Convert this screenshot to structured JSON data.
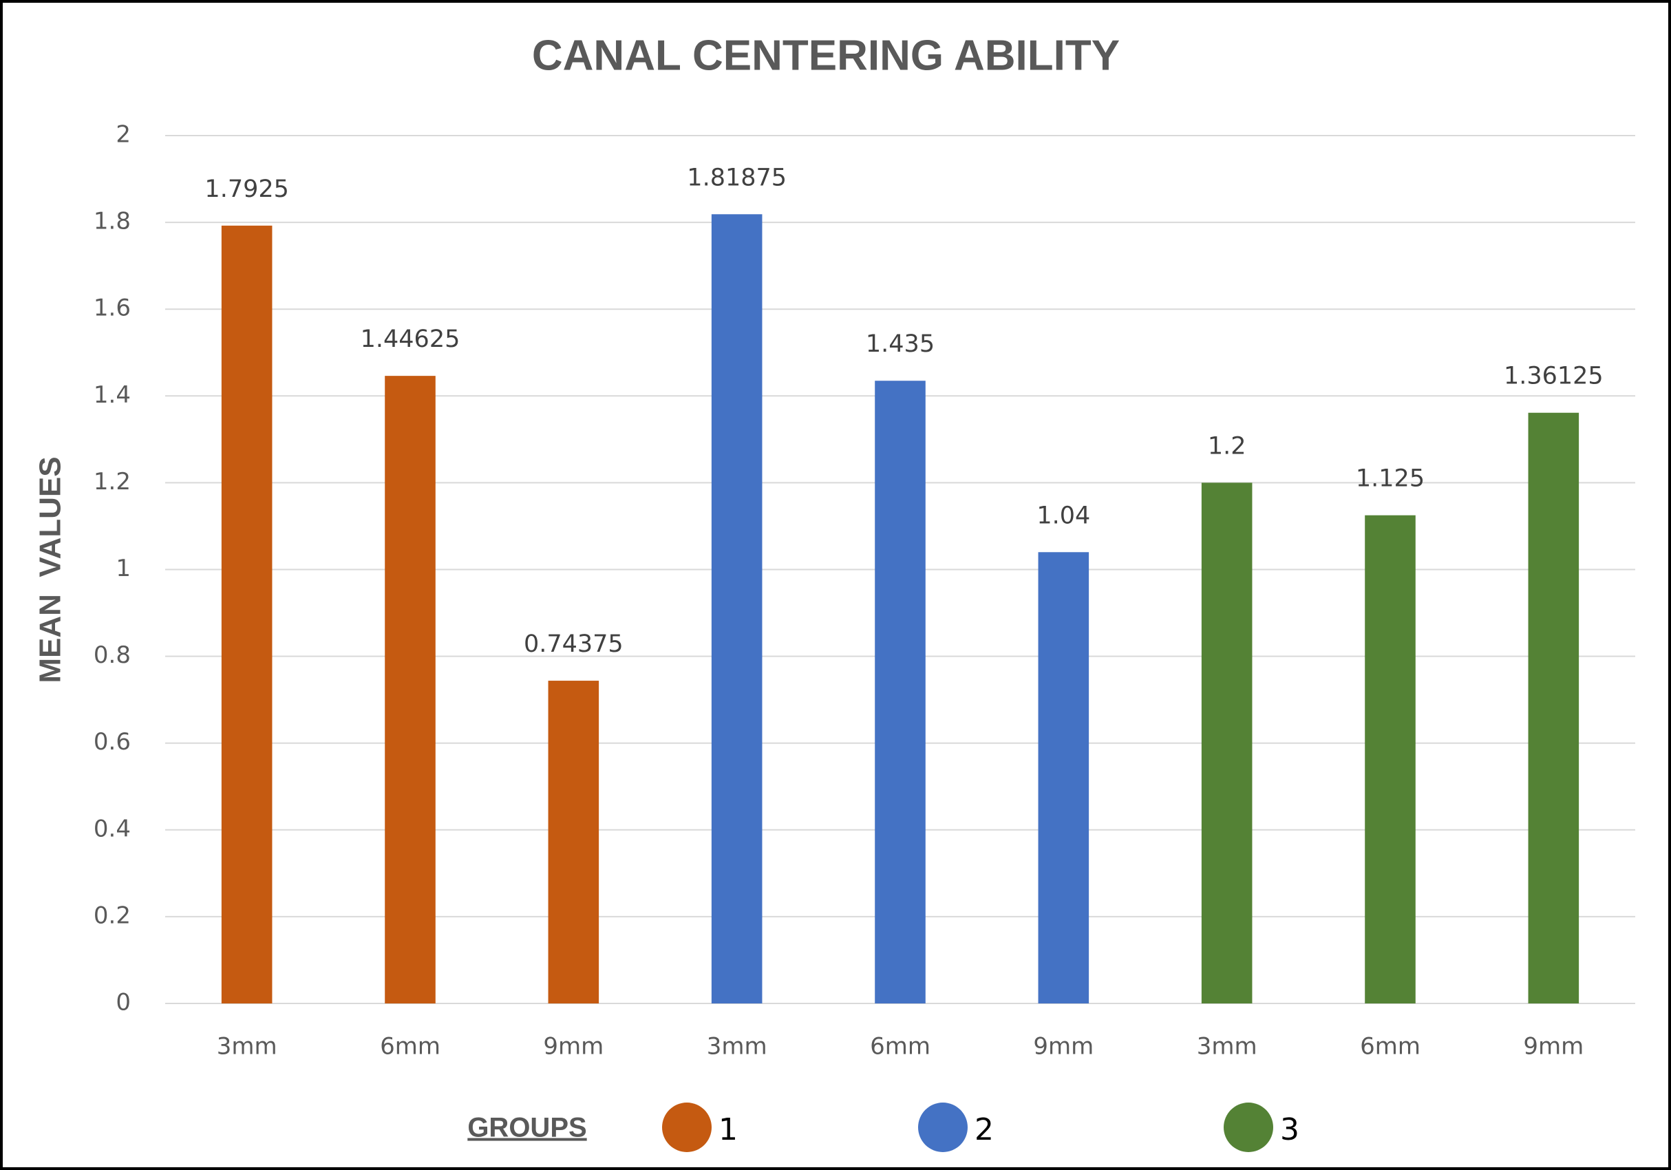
{
  "chart_data": {
    "type": "bar",
    "title": "CANAL CENTERING ABILITY",
    "y_label": "MEAN  VALUES",
    "legend_title": "GROUPS",
    "categories": [
      "3mm",
      "6mm",
      "9mm",
      "3mm",
      "6mm",
      "9mm",
      "3mm",
      "6mm",
      "9mm"
    ],
    "series": [
      {
        "name": "1",
        "color": "#c55a11",
        "values": [
          1.7925,
          1.44625,
          0.74375,
          null,
          null,
          null,
          null,
          null,
          null
        ]
      },
      {
        "name": "2",
        "color": "#4472c4",
        "values": [
          null,
          null,
          null,
          1.81875,
          1.435,
          1.04,
          null,
          null,
          null
        ]
      },
      {
        "name": "3",
        "color": "#548235",
        "values": [
          null,
          null,
          null,
          null,
          null,
          null,
          1.2,
          1.125,
          1.36125
        ]
      }
    ],
    "ylim": [
      0,
      2
    ],
    "yticks": [
      0,
      0.2,
      0.4,
      0.6,
      0.8,
      1,
      1.2,
      1.4,
      1.6,
      1.8,
      2
    ],
    "grid": true
  }
}
